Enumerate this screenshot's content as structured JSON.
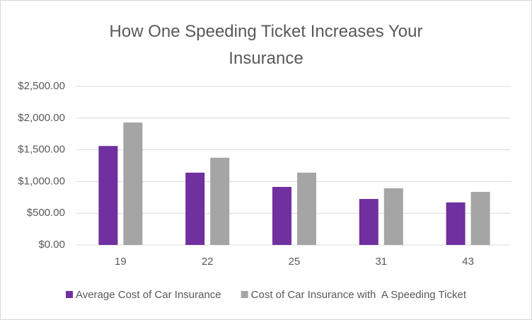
{
  "chart_data": {
    "type": "bar",
    "title": "How One Speeding Ticket Increases Your Insurance",
    "categories": [
      "19",
      "22",
      "25",
      "31",
      "43"
    ],
    "series": [
      {
        "name": "Average Cost of Car Insurance",
        "color": "#7030a0",
        "values": [
          1560,
          1140,
          915,
          725,
          670
        ]
      },
      {
        "name": "Cost of Car Insurance with  A Speeding Ticket",
        "color": "#a5a5a5",
        "values": [
          1930,
          1375,
          1140,
          893,
          837
        ]
      }
    ],
    "ylim": [
      0,
      2500
    ],
    "yticks": [
      {
        "value": 0,
        "label": "$0.00"
      },
      {
        "value": 500,
        "label": "$500.00"
      },
      {
        "value": 1000,
        "label": "$1,000.00"
      },
      {
        "value": 1500,
        "label": "$1,500.00"
      },
      {
        "value": 2000,
        "label": "$2,000.00"
      },
      {
        "value": 2500,
        "label": "$2,500.00"
      }
    ],
    "grid": true,
    "legend": "bottom"
  }
}
